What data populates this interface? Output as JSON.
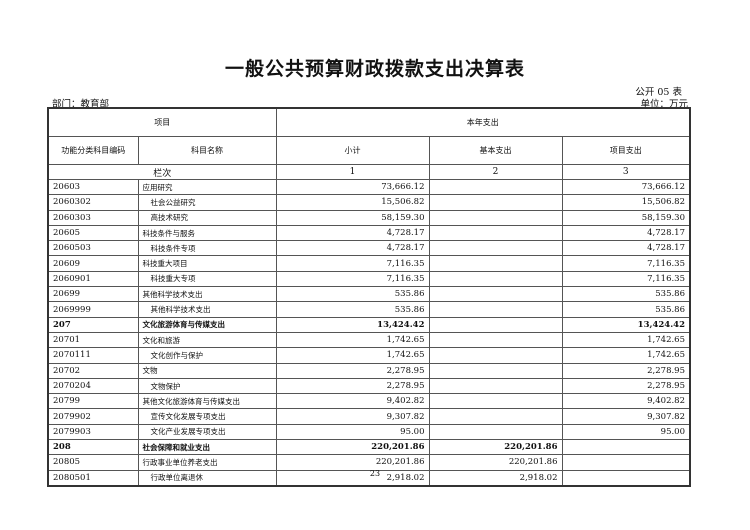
{
  "title": "一般公共预算财政拨款支出决算表",
  "form_no": "公开 05 表",
  "department": "部门：教育部",
  "unit": "单位：万元",
  "headers": {
    "item": "项目",
    "current_year": "本年支出",
    "code": "功能分类科目编码",
    "name": "科目名称",
    "subtotal": "小计",
    "basic": "基本支出",
    "project": "项目支出",
    "col_index": "栏次",
    "idx1": "1",
    "idx2": "2",
    "idx3": "3"
  },
  "rows": [
    {
      "code": "20603",
      "name": "应用研究",
      "subtotal": "73,666.12",
      "basic": "",
      "project": "73,666.12",
      "level": 1
    },
    {
      "code": "2060302",
      "name": "社会公益研究",
      "subtotal": "15,506.82",
      "basic": "",
      "project": "15,506.82",
      "level": 2
    },
    {
      "code": "2060303",
      "name": "高技术研究",
      "subtotal": "58,159.30",
      "basic": "",
      "project": "58,159.30",
      "level": 2
    },
    {
      "code": "20605",
      "name": "科技条件与服务",
      "subtotal": "4,728.17",
      "basic": "",
      "project": "4,728.17",
      "level": 1
    },
    {
      "code": "2060503",
      "name": "科技条件专项",
      "subtotal": "4,728.17",
      "basic": "",
      "project": "4,728.17",
      "level": 2
    },
    {
      "code": "20609",
      "name": "科技重大项目",
      "subtotal": "7,116.35",
      "basic": "",
      "project": "7,116.35",
      "level": 1
    },
    {
      "code": "2060901",
      "name": "科技重大专项",
      "subtotal": "7,116.35",
      "basic": "",
      "project": "7,116.35",
      "level": 2
    },
    {
      "code": "20699",
      "name": "其他科学技术支出",
      "subtotal": "535.86",
      "basic": "",
      "project": "535.86",
      "level": 1
    },
    {
      "code": "2069999",
      "name": "其他科学技术支出",
      "subtotal": "535.86",
      "basic": "",
      "project": "535.86",
      "level": 2
    },
    {
      "code": "207",
      "name": "文化旅游体育与传媒支出",
      "subtotal": "13,424.42",
      "basic": "",
      "project": "13,424.42",
      "level": 0
    },
    {
      "code": "20701",
      "name": "文化和旅游",
      "subtotal": "1,742.65",
      "basic": "",
      "project": "1,742.65",
      "level": 1
    },
    {
      "code": "2070111",
      "name": "文化创作与保护",
      "subtotal": "1,742.65",
      "basic": "",
      "project": "1,742.65",
      "level": 2
    },
    {
      "code": "20702",
      "name": "文物",
      "subtotal": "2,278.95",
      "basic": "",
      "project": "2,278.95",
      "level": 1
    },
    {
      "code": "2070204",
      "name": "文物保护",
      "subtotal": "2,278.95",
      "basic": "",
      "project": "2,278.95",
      "level": 2
    },
    {
      "code": "20799",
      "name": "其他文化旅游体育与传媒支出",
      "subtotal": "9,402.82",
      "basic": "",
      "project": "9,402.82",
      "level": 1
    },
    {
      "code": "2079902",
      "name": "宣传文化发展专项支出",
      "subtotal": "9,307.82",
      "basic": "",
      "project": "9,307.82",
      "level": 2
    },
    {
      "code": "2079903",
      "name": "文化产业发展专项支出",
      "subtotal": "95.00",
      "basic": "",
      "project": "95.00",
      "level": 2
    },
    {
      "code": "208",
      "name": "社会保障和就业支出",
      "subtotal": "220,201.86",
      "basic": "220,201.86",
      "project": "",
      "level": 0
    },
    {
      "code": "20805",
      "name": "行政事业单位养老支出",
      "subtotal": "220,201.86",
      "basic": "220,201.86",
      "project": "",
      "level": 1
    },
    {
      "code": "2080501",
      "name": "行政单位离退休",
      "subtotal": "2,918.02",
      "basic": "2,918.02",
      "project": "",
      "level": 2
    }
  ],
  "page_number": "23"
}
